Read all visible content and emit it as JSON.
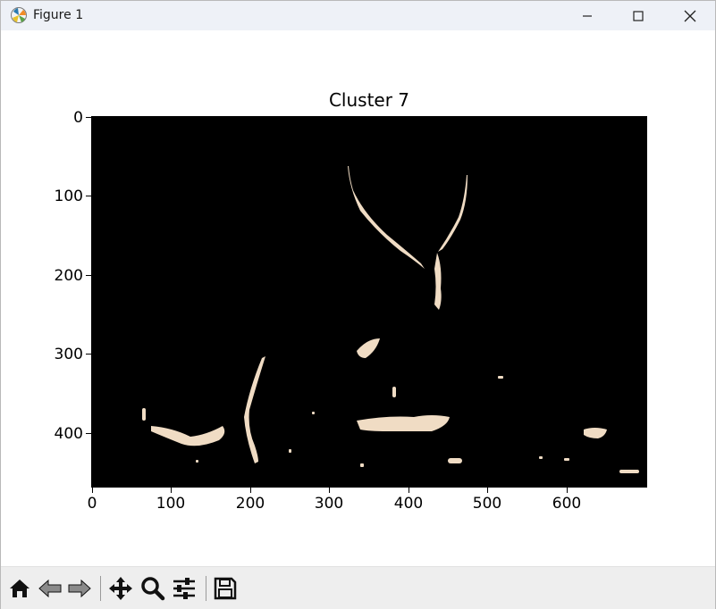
{
  "window": {
    "title": "Figure 1",
    "controls": [
      "minimize",
      "maximize",
      "close"
    ]
  },
  "figure": {
    "title": "Cluster 7",
    "y_ticks": [
      "0",
      "100",
      "200",
      "300",
      "400"
    ],
    "x_ticks": [
      "0",
      "100",
      "200",
      "300",
      "400",
      "500",
      "600"
    ]
  },
  "chart_data": {
    "type": "image",
    "title": "Cluster 7",
    "xlim": [
      0,
      700
    ],
    "ylim": [
      467,
      0
    ],
    "x_ticks": [
      0,
      100,
      200,
      300,
      400,
      500,
      600
    ],
    "y_ticks": [
      0,
      100,
      200,
      300,
      400
    ]
  },
  "toolbar": {
    "buttons": [
      "home-icon",
      "back-icon",
      "forward-icon",
      "pan-icon",
      "zoom-icon",
      "configure-subplots-icon",
      "save-icon"
    ]
  },
  "colors": {
    "titlebar": "#eef1f7",
    "toolbar": "#eeeeee",
    "image_background": "#000000",
    "highlight": "#f0dcc4"
  }
}
